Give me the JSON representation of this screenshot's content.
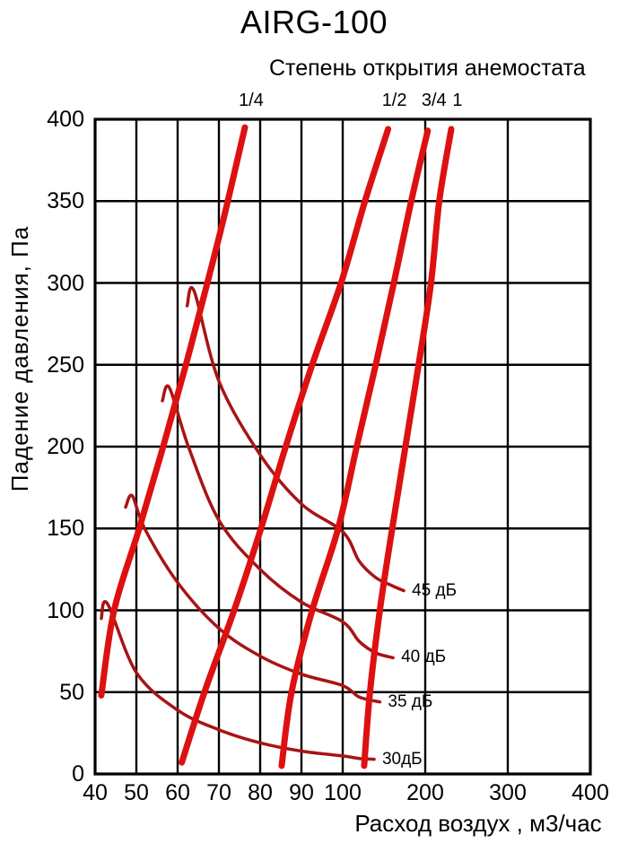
{
  "title": "AIRG-100",
  "subtitle": "Степень открытия анемостата",
  "chart_data": {
    "type": "line",
    "title": "AIRG-100",
    "subtitle": "Степень открытия анемостата",
    "xlabel": "Расход воздух , м3/час",
    "ylabel": "Падение давления, Па",
    "x_ticks": [
      40,
      50,
      60,
      70,
      80,
      90,
      100,
      200,
      300,
      400
    ],
    "y_ticks": [
      0,
      50,
      100,
      150,
      200,
      250,
      300,
      350,
      400
    ],
    "xlim": [
      40,
      400
    ],
    "ylim": [
      0,
      400
    ],
    "grid": true,
    "x_scale_note": "log-paper style: ticks 40-100 evenly spaced, ticks 100-400 at double spacing",
    "opening_lines": [
      {
        "label": "1/4",
        "points": [
          [
            41.5,
            48
          ],
          [
            44.6,
            100
          ],
          [
            50.7,
            150
          ],
          [
            56.5,
            200
          ],
          [
            62,
            250
          ],
          [
            67.2,
            300
          ],
          [
            71.3,
            341
          ],
          [
            76.3,
            395
          ]
        ]
      },
      {
        "label": "1/2",
        "points": [
          [
            61,
            7
          ],
          [
            66.5,
            50
          ],
          [
            73.7,
            100
          ],
          [
            80.2,
            150
          ],
          [
            86.2,
            200
          ],
          [
            92.6,
            250
          ],
          [
            99.6,
            300
          ],
          [
            127,
            350
          ],
          [
            155,
            394
          ]
        ]
      },
      {
        "label": "3/4",
        "points": [
          [
            85.2,
            5
          ],
          [
            87.6,
            50
          ],
          [
            92.6,
            100
          ],
          [
            98.9,
            150
          ],
          [
            117,
            200
          ],
          [
            140,
            250
          ],
          [
            162,
            300
          ],
          [
            183,
            350
          ],
          [
            203,
            393
          ]
        ]
      },
      {
        "label": "1",
        "points": [
          [
            126,
            5
          ],
          [
            133,
            50
          ],
          [
            145,
            100
          ],
          [
            160,
            150
          ],
          [
            176,
            200
          ],
          [
            192,
            250
          ],
          [
            207,
            300
          ],
          [
            217,
            350
          ],
          [
            231.5,
            394
          ]
        ]
      }
    ],
    "noise_curves": [
      {
        "label": "45 дБ",
        "points": [
          [
            62.3,
            286
          ],
          [
            64,
            295
          ],
          [
            70,
            240
          ],
          [
            80,
            195
          ],
          [
            90,
            165
          ],
          [
            100,
            148
          ],
          [
            120,
            130
          ],
          [
            140,
            120
          ],
          [
            160,
            115
          ],
          [
            174,
            112
          ]
        ]
      },
      {
        "label": "40 дБ",
        "points": [
          [
            56.3,
            228
          ],
          [
            58,
            236
          ],
          [
            62.6,
            200
          ],
          [
            70,
            155
          ],
          [
            80,
            125
          ],
          [
            90,
            105
          ],
          [
            100,
            93
          ],
          [
            120,
            81
          ],
          [
            140,
            74
          ],
          [
            161,
            71
          ]
        ]
      },
      {
        "label": "35 дБ",
        "points": [
          [
            47.4,
            163
          ],
          [
            49,
            170
          ],
          [
            52,
            150
          ],
          [
            60,
            117
          ],
          [
            70,
            89
          ],
          [
            80,
            72
          ],
          [
            90,
            61
          ],
          [
            100,
            54
          ],
          [
            120,
            47
          ],
          [
            145,
            44
          ]
        ]
      },
      {
        "label": "30дБ",
        "points": [
          [
            41.5,
            95
          ],
          [
            43,
            104
          ],
          [
            50,
            62
          ],
          [
            60,
            39
          ],
          [
            70,
            27
          ],
          [
            80,
            19
          ],
          [
            90,
            14
          ],
          [
            100,
            11
          ],
          [
            120,
            9.5
          ],
          [
            138,
            9
          ]
        ]
      }
    ],
    "colors": {
      "opening_line": "#dd1111",
      "noise_curve": "#a81414",
      "grid": "#000000",
      "text": "#000000",
      "background": "#ffffff"
    }
  }
}
